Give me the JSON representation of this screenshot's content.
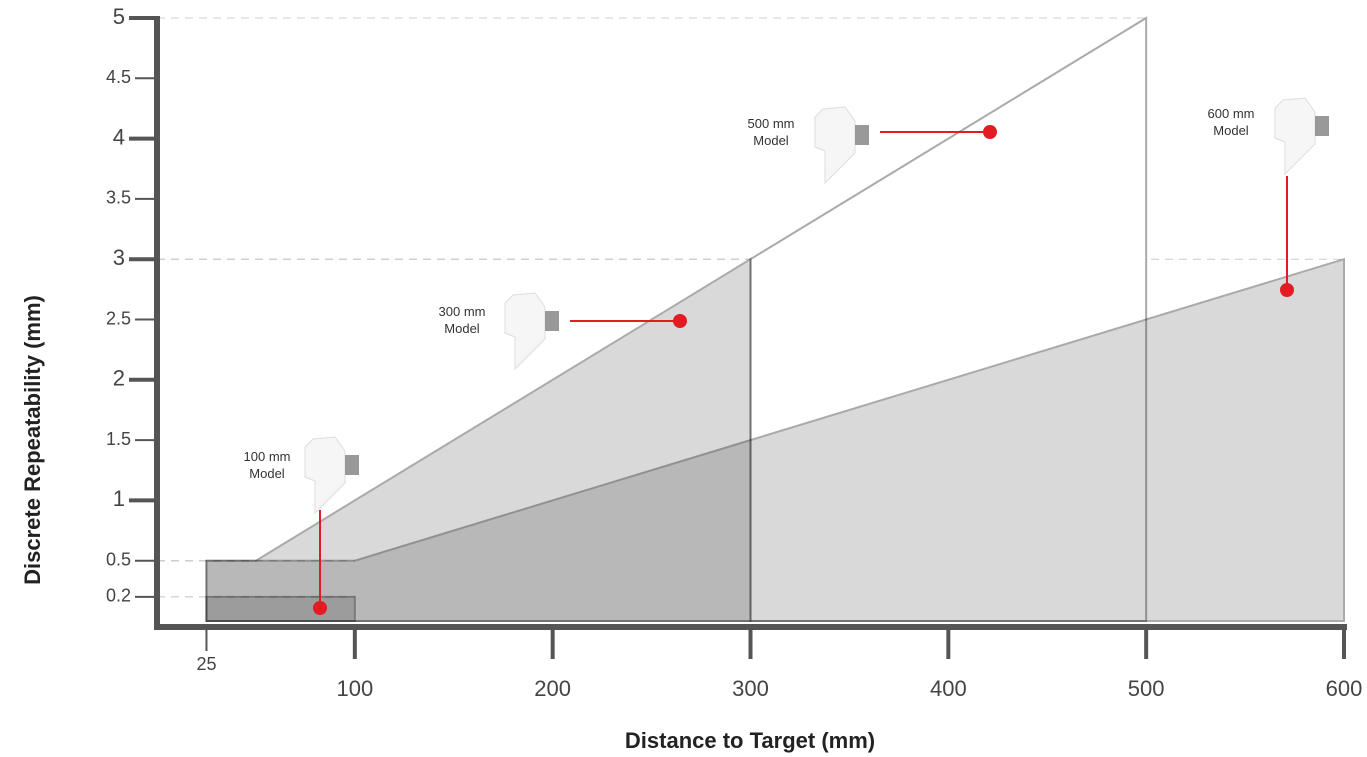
{
  "chart_data": {
    "type": "area",
    "x_label": "Distance to Target (mm)",
    "y_label": "Discrete Repeatability (mm)",
    "xlim": [
      0,
      600
    ],
    "ylim": [
      0,
      5
    ],
    "xticks": [
      25,
      100,
      200,
      300,
      400,
      500,
      600
    ],
    "yticks": [
      0.2,
      0.5,
      1,
      1.5,
      2,
      2.5,
      3,
      3.5,
      4,
      4.5,
      5
    ],
    "series": [
      {
        "name": "500 mm Model",
        "color": "#ffffff",
        "x": [
          300,
          300,
          500,
          500
        ],
        "values": [
          0,
          3,
          5,
          0
        ]
      },
      {
        "name": "600 mm Model",
        "color": "#d9d9d9",
        "x": [
          25,
          25,
          100,
          600,
          600
        ],
        "values": [
          0,
          0.5,
          0.5,
          3,
          0
        ]
      },
      {
        "name": "300 mm Model",
        "color": "#d9d9d9",
        "x": [
          25,
          25,
          50,
          300,
          300
        ],
        "values": [
          0,
          0.5,
          0.5,
          3,
          0
        ]
      },
      {
        "name": "100 mm Model",
        "color": "#d9d9d9",
        "x": [
          25,
          25,
          100,
          100
        ],
        "values": [
          0,
          0.2,
          0.2,
          0
        ]
      }
    ]
  }
}
